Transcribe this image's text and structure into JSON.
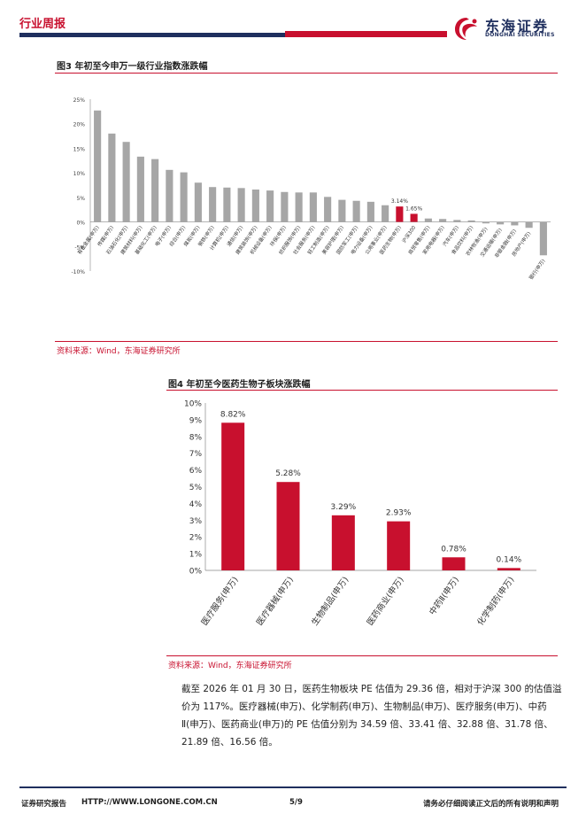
{
  "header": {
    "title": "行业周报",
    "logo_cn": "东海证券",
    "logo_en": "DONGHAI SECURITIES"
  },
  "figure3": {
    "title": "图3  年初至今申万一级行业指数涨跌幅",
    "source": "资料来源：Wind，东海证券研究所"
  },
  "figure4": {
    "title": "图4  年初至今医药生物子板块涨跌幅",
    "source": "资料来源：Wind，东海证券研究所"
  },
  "paragraph": "截至 2026 年 01 月 30 日，医药生物板块 PE 估值为 29.36 倍，相对于沪深 300 的估值溢价为 117%。医疗器械(申万)、化学制药(申万)、生物制品(申万)、医疗服务(申万)、中药Ⅱ(申万)、医药商业(申万)的 PE 估值分别为 34.59 倍、33.41 倍、32.88 倍、31.78 倍、21.89 倍、16.56 倍。",
  "footer": {
    "left": "证券研究报告",
    "url": "HTTP://WWW.LONGONE.COM.CN",
    "page": "5/9",
    "right": "请务必仔细阅读正文后的所有说明和声明"
  },
  "colors": {
    "accent": "#c8102e",
    "navy": "#1f2f5e",
    "gray_bar": "#a6a6a6"
  },
  "chart_data": [
    {
      "type": "bar",
      "ylim": [
        -10,
        25
      ],
      "yticks": [
        "25%",
        "20%",
        "15%",
        "10%",
        "5%",
        "0%",
        "-5%",
        "-10%"
      ],
      "categories": [
        "有色金属(申万)",
        "传媒(申万)",
        "石油石化(申万)",
        "建筑材料(申万)",
        "基础化工(申万)",
        "电子(申万)",
        "综合(申万)",
        "煤炭(申万)",
        "钢铁(申万)",
        "计算机(申万)",
        "通信(申万)",
        "建筑装饰(申万)",
        "机械设备(申万)",
        "环保(申万)",
        "纺织服饰(申万)",
        "社会服务(申万)",
        "轻工制造(申万)",
        "美容护理(申万)",
        "国防军工(申万)",
        "电力设备(申万)",
        "公用事业(申万)",
        "医药生物(申万)",
        "沪深300",
        "商贸零售(申万)",
        "家用电器(申万)",
        "汽车(申万)",
        "食品饮料(申万)",
        "农林牧渔(申万)",
        "交通运输(申万)",
        "非银金融(申万)",
        "房地产(申万)",
        "银行(申万)"
      ],
      "values": [
        22.7,
        18.0,
        16.3,
        13.3,
        12.8,
        10.6,
        10.1,
        8.0,
        7.1,
        7.0,
        6.9,
        6.6,
        6.4,
        6.1,
        6.0,
        6.0,
        5.1,
        4.5,
        4.3,
        4.1,
        3.4,
        3.14,
        1.65,
        0.7,
        0.6,
        0.4,
        0.3,
        -0.3,
        -0.5,
        -0.7,
        -1.2,
        -6.8
      ],
      "highlight": [
        21,
        22
      ],
      "data_labels": {
        "21": "3.14%",
        "22": "1.65%"
      }
    },
    {
      "type": "bar",
      "ylim": [
        0,
        10
      ],
      "yticks": [
        "10%",
        "9%",
        "8%",
        "7%",
        "6%",
        "5%",
        "4%",
        "3%",
        "2%",
        "1%",
        "0%"
      ],
      "categories": [
        "医疗服务(申万)",
        "医疗器械(申万)",
        "生物制品(申万)",
        "医药商业(申万)",
        "中药Ⅱ(申万)",
        "化学制药(申万)"
      ],
      "values": [
        8.82,
        5.28,
        3.29,
        2.93,
        0.78,
        0.14
      ],
      "data_labels": [
        "8.82%",
        "5.28%",
        "3.29%",
        "2.93%",
        "0.78%",
        "0.14%"
      ]
    }
  ]
}
